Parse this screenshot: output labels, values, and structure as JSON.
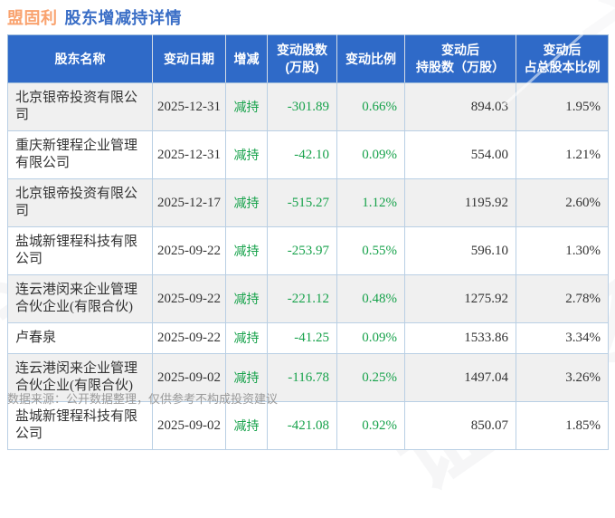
{
  "page": {
    "title_stock": "盟固利",
    "title_rest": "股东增减持详情",
    "footer": "数据来源：公开数据整理，仅供参考不构成投资建议",
    "watermark": "证券之星"
  },
  "colors": {
    "header_bg": "#2f6ac8",
    "title_orange": "#f9a26e",
    "title_blue": "#3a6ec6",
    "decrease_green": "#17a24b",
    "row_alt_gray": "#f0f0f0",
    "table_border": "#b9cfe4",
    "text_dark": "#333333",
    "footer_gray": "#9a9a9a"
  },
  "table": {
    "columns": [
      {
        "key": "name",
        "label": "股东名称",
        "align": "left"
      },
      {
        "key": "date",
        "label": "变动日期",
        "align": "center"
      },
      {
        "key": "action",
        "label": "增减",
        "align": "center"
      },
      {
        "key": "change",
        "label": "变动股数\n(万股)",
        "align": "right"
      },
      {
        "key": "ratio",
        "label": "变动比例",
        "align": "right"
      },
      {
        "key": "after",
        "label": "变动后\n持股数（万股）",
        "align": "right"
      },
      {
        "key": "after_ratio",
        "label": "变动后\n占总股本比例",
        "align": "right"
      }
    ],
    "rows": [
      {
        "name": "北京银帝投资有限公司",
        "date": "2025-12-31",
        "action": "减持",
        "change": "-301.89",
        "ratio": "0.66%",
        "after": "894.03",
        "after_ratio": "1.95%"
      },
      {
        "name": "重庆新锂程企业管理有限公司",
        "date": "2025-12-31",
        "action": "减持",
        "change": "-42.10",
        "ratio": "0.09%",
        "after": "554.00",
        "after_ratio": "1.21%"
      },
      {
        "name": "北京银帝投资有限公司",
        "date": "2025-12-17",
        "action": "减持",
        "change": "-515.27",
        "ratio": "1.12%",
        "after": "1195.92",
        "after_ratio": "2.60%"
      },
      {
        "name": "盐城新锂程科技有限公司",
        "date": "2025-09-22",
        "action": "减持",
        "change": "-253.97",
        "ratio": "0.55%",
        "after": "596.10",
        "after_ratio": "1.30%"
      },
      {
        "name": "连云港闵来企业管理合伙企业(有限合伙)",
        "date": "2025-09-22",
        "action": "减持",
        "change": "-221.12",
        "ratio": "0.48%",
        "after": "1275.92",
        "after_ratio": "2.78%"
      },
      {
        "name": "卢春泉",
        "date": "2025-09-22",
        "action": "减持",
        "change": "-41.25",
        "ratio": "0.09%",
        "after": "1533.86",
        "after_ratio": "3.34%"
      },
      {
        "name": "连云港闵来企业管理合伙企业(有限合伙)",
        "date": "2025-09-02",
        "action": "减持",
        "change": "-116.78",
        "ratio": "0.25%",
        "after": "1497.04",
        "after_ratio": "3.26%"
      },
      {
        "name": "盐城新锂程科技有限公司",
        "date": "2025-09-02",
        "action": "减持",
        "change": "-421.08",
        "ratio": "0.92%",
        "after": "850.07",
        "after_ratio": "1.85%"
      }
    ]
  }
}
